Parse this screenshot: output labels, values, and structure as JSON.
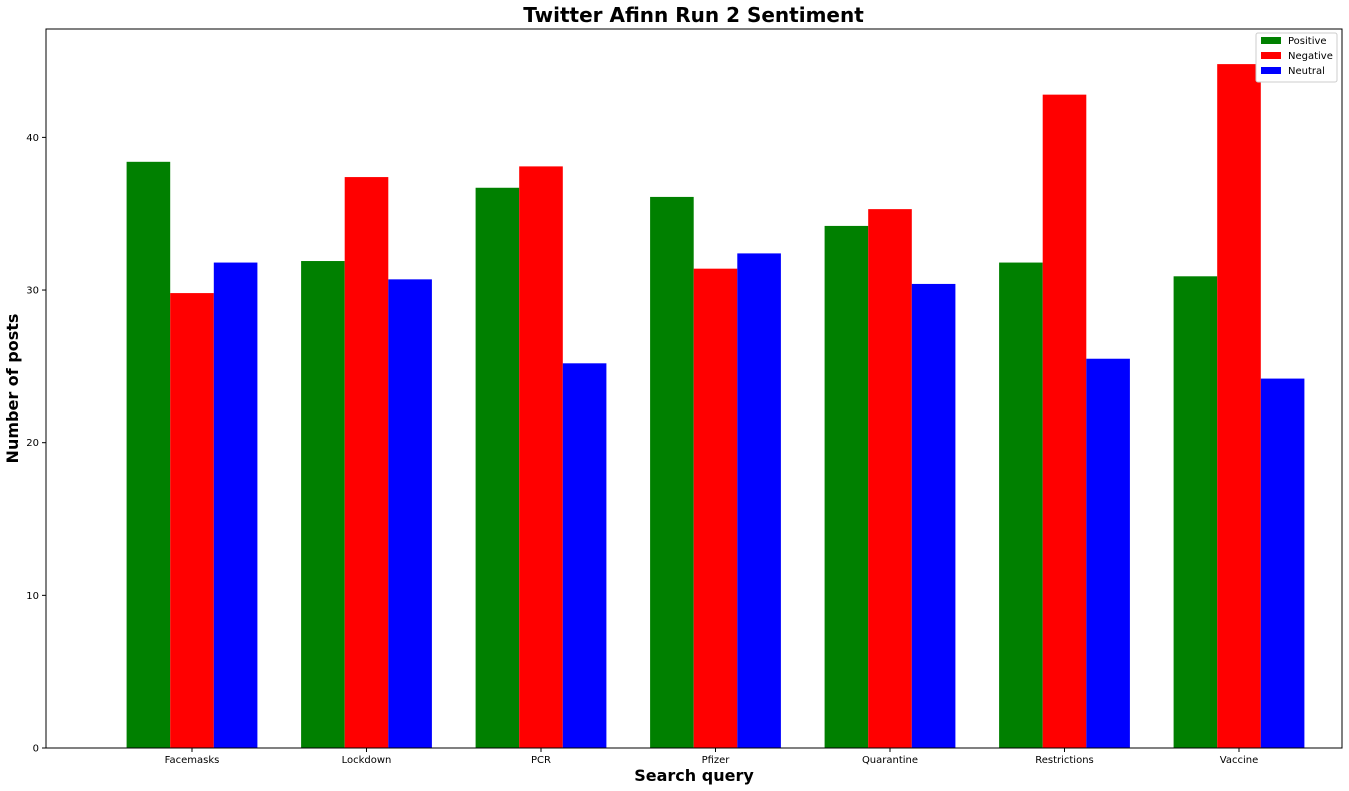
{
  "chart_data": {
    "type": "bar",
    "title": "Twitter Afinn Run 2 Sentiment",
    "xlabel": "Search query",
    "ylabel": "Number of posts",
    "categories": [
      "Facemasks",
      "Lockdown",
      "PCR",
      "Pfizer",
      "Quarantine",
      "Restrictions",
      "Vaccine"
    ],
    "series": [
      {
        "name": "Positive",
        "color": "#008000",
        "values": [
          38.4,
          31.9,
          36.7,
          36.1,
          34.2,
          31.8,
          30.9
        ]
      },
      {
        "name": "Negative",
        "color": "#ff0000",
        "values": [
          29.8,
          37.4,
          38.1,
          31.4,
          35.3,
          42.8,
          44.8
        ]
      },
      {
        "name": "Neutral",
        "color": "#0000ff",
        "values": [
          31.8,
          30.7,
          25.2,
          32.4,
          30.4,
          25.5,
          24.2
        ]
      }
    ],
    "yticks": [
      0,
      10,
      20,
      30,
      40
    ],
    "ylim": [
      0,
      47.1
    ],
    "grid": false,
    "legend": "top-right"
  }
}
